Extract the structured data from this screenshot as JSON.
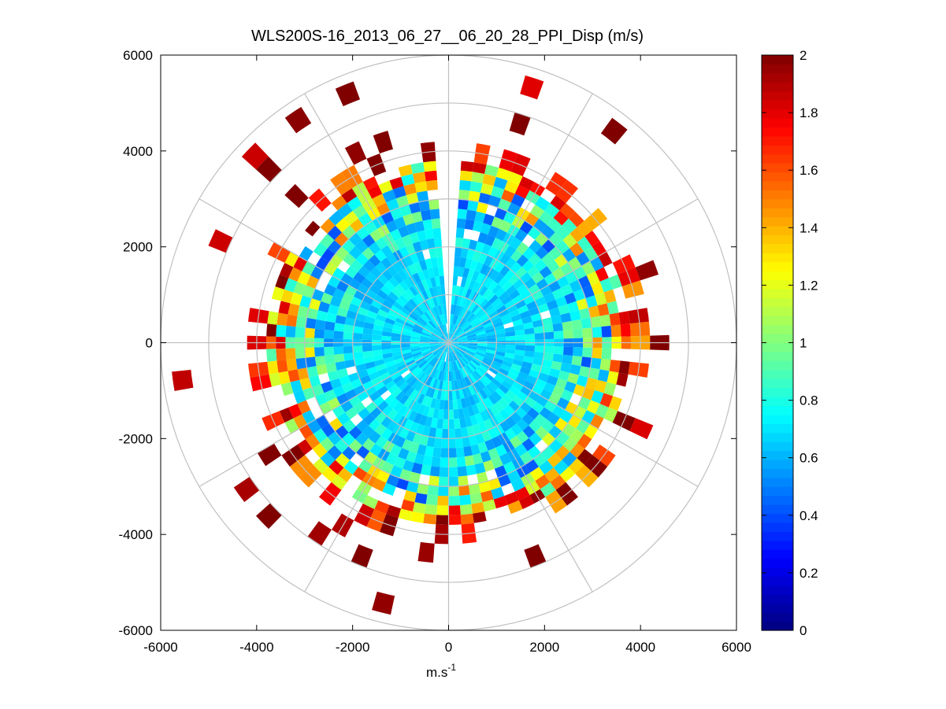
{
  "chart_data": {
    "type": "heatmap",
    "subtype": "polar-ppi-scan",
    "title": "WLS200S-16_2013_06_27__06_20_28_PPI_Disp (m/s)",
    "xlabel": "m.s",
    "xlabel_superscript": "-1",
    "ylabel": "",
    "xlim": [
      -6000,
      6000
    ],
    "ylim": [
      -6000,
      6000
    ],
    "x_ticks": [
      -6000,
      -4000,
      -2000,
      0,
      2000,
      4000,
      6000
    ],
    "y_ticks": [
      -6000,
      -4000,
      -2000,
      0,
      2000,
      4000,
      6000
    ],
    "x_tick_labels": [
      "-6000",
      "-4000",
      "-2000",
      "0",
      "2000",
      "4000",
      "6000"
    ],
    "y_tick_labels": [
      "-6000",
      "-4000",
      "-2000",
      "0",
      "2000",
      "4000",
      "6000"
    ],
    "grid": true,
    "polar_grid": {
      "range_rings": [
        1000,
        2000,
        3000,
        4000,
        5000,
        6000
      ],
      "spoke_angles_deg": [
        0,
        30,
        60,
        90,
        120,
        150,
        180,
        210,
        240,
        270,
        300,
        330
      ],
      "color": "#c0c0c0"
    },
    "colorbar": {
      "min": 0,
      "max": 2,
      "ticks": [
        0,
        0.2,
        0.4,
        0.6,
        0.8,
        1,
        1.2,
        1.4,
        1.6,
        1.8,
        2
      ],
      "tick_labels": [
        "0",
        "0.2",
        "0.4",
        "0.6",
        "0.8",
        "1",
        "1.2",
        "1.4",
        "1.6",
        "1.8",
        "2"
      ],
      "colormap": "jet",
      "placement": "right"
    },
    "scan": {
      "angular_step_deg": 4,
      "missing_sector_deg": [
        -3,
        3
      ],
      "range_gates_m": [
        200,
        400,
        600,
        800,
        1000,
        1200,
        1400,
        1600,
        1800,
        2000,
        2200,
        2400,
        2600,
        2800,
        3000,
        3200,
        3400,
        3600,
        3800,
        4200,
        4600,
        5000,
        5400,
        5800
      ],
      "value_profile": [
        {
          "range_m": 0,
          "mean": 0.65,
          "spread": 0.08
        },
        {
          "range_m": 1000,
          "mean": 0.68,
          "spread": 0.1
        },
        {
          "range_m": 2000,
          "mean": 0.7,
          "spread": 0.12
        },
        {
          "range_m": 2600,
          "mean": 0.75,
          "spread": 0.3
        },
        {
          "range_m": 3000,
          "mean": 0.9,
          "spread": 0.55
        },
        {
          "range_m": 3400,
          "mean": 1.05,
          "spread": 0.65
        },
        {
          "range_m": 3800,
          "mean": 1.6,
          "spread": 0.6
        },
        {
          "range_m": 4200,
          "mean": 2.0,
          "spread": 0.2
        },
        {
          "range_m": 6000,
          "mean": 2.0,
          "spread": 0.2
        }
      ],
      "coverage_profile": [
        {
          "range_m": 0,
          "fraction": 1.0
        },
        {
          "range_m": 2600,
          "fraction": 0.97
        },
        {
          "range_m": 3400,
          "fraction": 0.92
        },
        {
          "range_m": 3800,
          "fraction": 0.75
        },
        {
          "range_m": 4200,
          "fraction": 0.1
        },
        {
          "range_m": 6000,
          "fraction": 0.05
        }
      ]
    }
  }
}
